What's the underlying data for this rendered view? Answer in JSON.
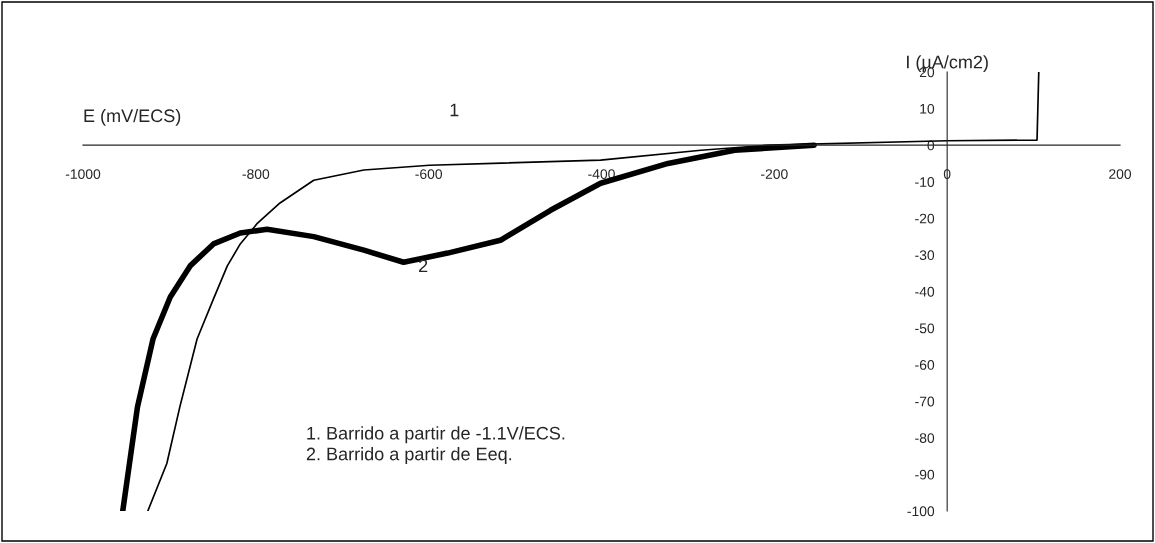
{
  "chart_data": {
    "type": "line",
    "xlabel": "E (mV/ECS)",
    "ylabel": "I (µA/cm2)",
    "xlim": [
      -1000,
      200
    ],
    "ylim": [
      -100,
      20
    ],
    "xticks": [
      -1000,
      -800,
      -600,
      -400,
      -200,
      0,
      200
    ],
    "yticks": [
      20,
      10,
      0,
      -10,
      -20,
      -30,
      -40,
      -50,
      -60,
      -70,
      -80,
      -90,
      -100
    ],
    "grid": false,
    "marker": "none",
    "line_style": "solid",
    "series": [
      {
        "color": "#000000",
        "x": [
          -925,
          -903,
          -888,
          -868,
          -849,
          -833,
          -818,
          -798,
          -772,
          -733,
          -675,
          -599,
          -401,
          -285,
          -207,
          0,
          104,
          106
        ],
        "values": [
          -100,
          -87,
          -71.6,
          -53,
          -42,
          -33,
          -27,
          -21.3,
          -15.8,
          -9.6,
          -6.8,
          -5.5,
          -4.1,
          -1.4,
          0,
          1.2,
          1.4,
          20
        ]
      },
      {
        "color": "#000000",
        "x": [
          -954,
          -937,
          -919,
          -899,
          -876,
          -849,
          -818,
          -787,
          -733,
          -675,
          -629,
          -578,
          -517,
          -459,
          -401,
          -323,
          -246,
          -154
        ],
        "values": [
          -100,
          -71.6,
          -53,
          -41.5,
          -33,
          -27,
          -24,
          -23,
          -25,
          -28.7,
          -32,
          -29.5,
          -26,
          -17.8,
          -10.4,
          -5,
          -1.4,
          0
        ]
      }
    ],
    "annotations": [
      "1",
      "2",
      "1. Barrido a partir de -1.1V/ECS.\n2. Barrido a partir de Eeq."
    ]
  }
}
